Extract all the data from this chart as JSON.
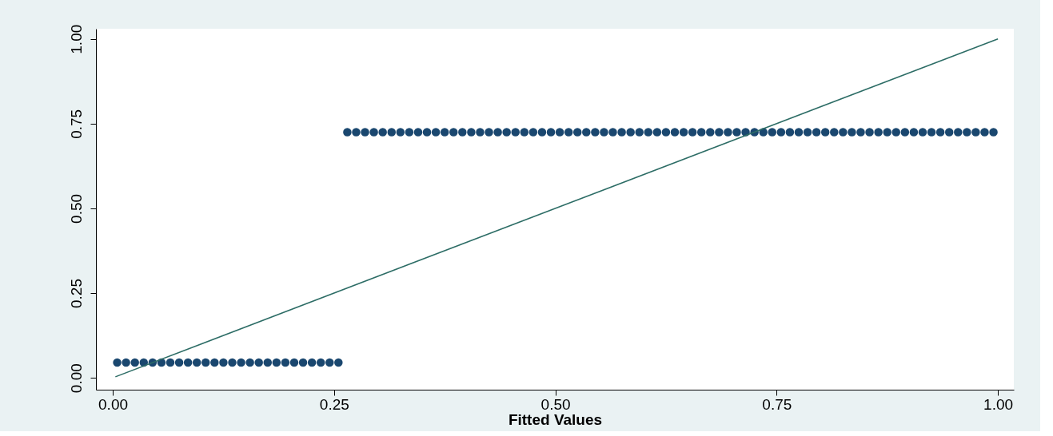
{
  "chart_data": {
    "type": "scatter",
    "xlabel": "Fitted Values",
    "xlim": [
      -0.019,
      1.018
    ],
    "ylim": [
      -0.035,
      1.03
    ],
    "xticks": [
      {
        "value": 0,
        "label": "0.00"
      },
      {
        "value": 0.25,
        "label": "0.25"
      },
      {
        "value": 0.5,
        "label": "0.50"
      },
      {
        "value": 0.75,
        "label": "0.75"
      },
      {
        "value": 1,
        "label": "1.00"
      }
    ],
    "yticks": [
      {
        "value": 0,
        "label": "0.00"
      },
      {
        "value": 0.25,
        "label": "0.25"
      },
      {
        "value": 0.5,
        "label": "0.50"
      },
      {
        "value": 0.75,
        "label": "0.75"
      },
      {
        "value": 1,
        "label": "1.00"
      }
    ],
    "grid": false,
    "series": [
      {
        "marker": "circle",
        "color": "#1a476f",
        "x": [
          0.005,
          0.015,
          0.025,
          0.035,
          0.045,
          0.055,
          0.065,
          0.075,
          0.085,
          0.095,
          0.105,
          0.115,
          0.125,
          0.135,
          0.145,
          0.155,
          0.165,
          0.175,
          0.185,
          0.195,
          0.205,
          0.215,
          0.225,
          0.235,
          0.245,
          0.255,
          0.265,
          0.275,
          0.285,
          0.295,
          0.305,
          0.315,
          0.325,
          0.335,
          0.345,
          0.355,
          0.365,
          0.375,
          0.385,
          0.395,
          0.405,
          0.415,
          0.425,
          0.435,
          0.445,
          0.455,
          0.465,
          0.475,
          0.485,
          0.495,
          0.505,
          0.515,
          0.525,
          0.535,
          0.545,
          0.555,
          0.565,
          0.575,
          0.585,
          0.595,
          0.605,
          0.615,
          0.625,
          0.635,
          0.645,
          0.655,
          0.665,
          0.675,
          0.685,
          0.695,
          0.705,
          0.715,
          0.725,
          0.735,
          0.745,
          0.755,
          0.765,
          0.775,
          0.785,
          0.795,
          0.805,
          0.815,
          0.825,
          0.835,
          0.845,
          0.855,
          0.865,
          0.875,
          0.885,
          0.895,
          0.905,
          0.915,
          0.925,
          0.935,
          0.945,
          0.955,
          0.965,
          0.975,
          0.985,
          0.995
        ],
        "values": [
          0.045,
          0.045,
          0.045,
          0.045,
          0.045,
          0.045,
          0.045,
          0.045,
          0.045,
          0.045,
          0.045,
          0.045,
          0.045,
          0.045,
          0.045,
          0.045,
          0.045,
          0.045,
          0.045,
          0.045,
          0.045,
          0.045,
          0.045,
          0.045,
          0.045,
          0.045,
          0.725,
          0.725,
          0.725,
          0.725,
          0.725,
          0.725,
          0.725,
          0.725,
          0.725,
          0.725,
          0.725,
          0.725,
          0.725,
          0.725,
          0.725,
          0.725,
          0.725,
          0.725,
          0.725,
          0.725,
          0.725,
          0.725,
          0.725,
          0.725,
          0.725,
          0.725,
          0.725,
          0.725,
          0.725,
          0.725,
          0.725,
          0.725,
          0.725,
          0.725,
          0.725,
          0.725,
          0.725,
          0.725,
          0.725,
          0.725,
          0.725,
          0.725,
          0.725,
          0.725,
          0.725,
          0.725,
          0.725,
          0.725,
          0.725,
          0.725,
          0.725,
          0.725,
          0.725,
          0.725,
          0.725,
          0.725,
          0.725,
          0.725,
          0.725,
          0.725,
          0.725,
          0.725,
          0.725,
          0.725,
          0.725,
          0.725,
          0.725,
          0.725,
          0.725,
          0.725,
          0.725,
          0.725,
          0.725,
          0.725
        ]
      },
      {
        "type": "line",
        "line_style": "solid",
        "color": "#2d6d66",
        "x": [
          0.003,
          1
        ],
        "values": [
          0.003,
          1
        ]
      }
    ]
  }
}
